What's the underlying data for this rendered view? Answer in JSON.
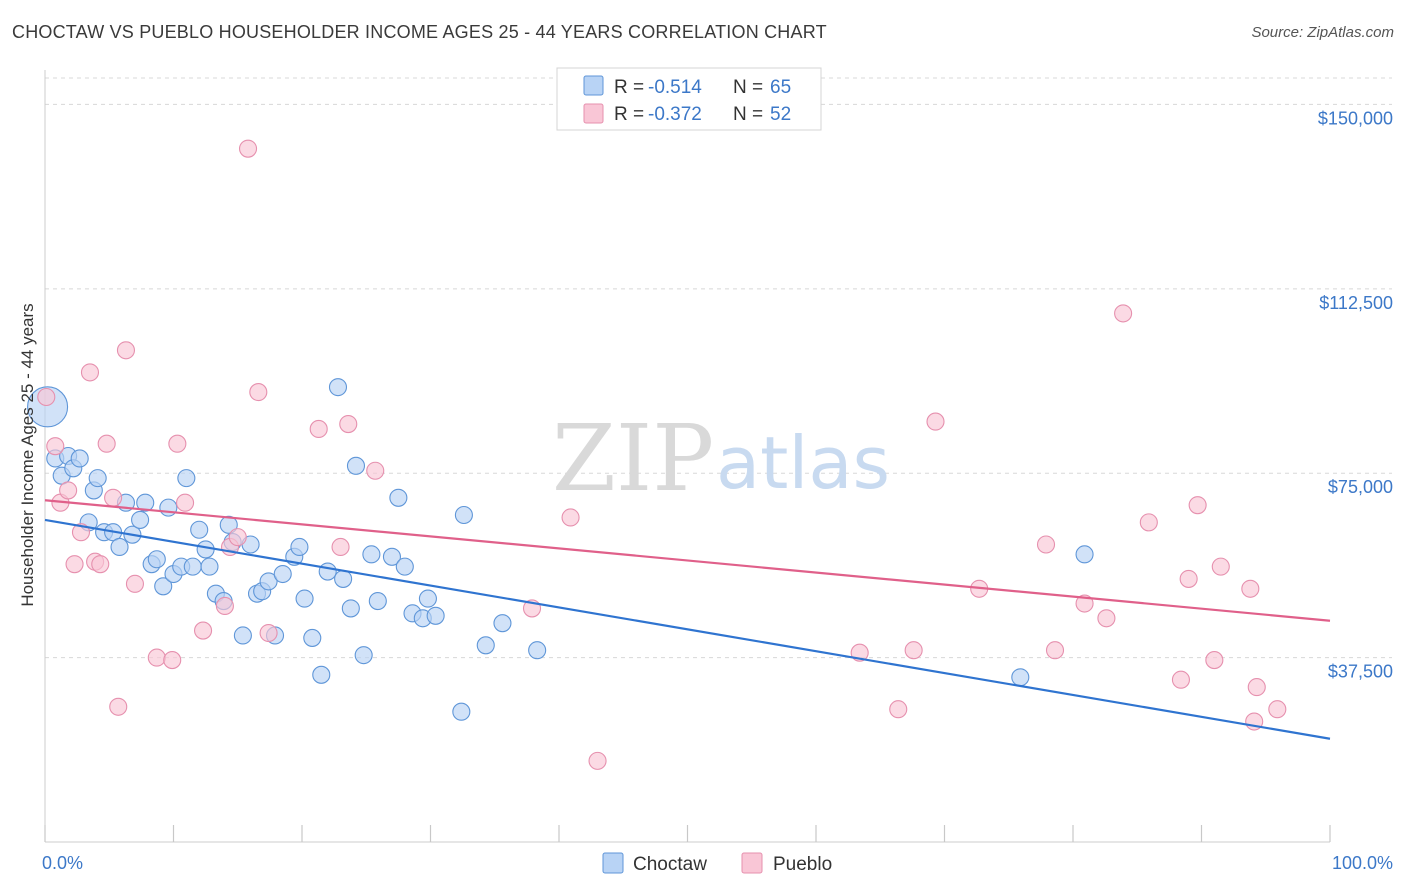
{
  "title": "CHOCTAW VS PUEBLO HOUSEHOLDER INCOME AGES 25 - 44 YEARS CORRELATION CHART",
  "source": "Source: ZipAtlas.com",
  "watermark": {
    "zip": "ZIP",
    "atlas": "atlas"
  },
  "colors": {
    "choctaw_fill": "#b8d3f5",
    "choctaw_stroke": "#5f96d8",
    "choctaw_line": "#2f74d0",
    "pueblo_fill": "#f9c6d6",
    "pueblo_stroke": "#e690ae",
    "pueblo_line": "#e0608a",
    "grid": "#d8d8d8",
    "axis_text": "#3c78c8"
  },
  "legend": {
    "r_label": "R =",
    "n_label": "N =",
    "choctaw": {
      "r": "-0.514",
      "n": "65"
    },
    "pueblo": {
      "r": "-0.372",
      "n": "52"
    }
  },
  "chart_data": {
    "type": "scatter",
    "ylabel": "Householder Income Ages 25 - 44 years",
    "xlim": [
      0,
      100
    ],
    "ylim": [
      0,
      157000
    ],
    "x_tick_labels": [
      "0.0%",
      "100.0%"
    ],
    "y_ticks": [
      {
        "value": 37500,
        "label": "$37,500"
      },
      {
        "value": 75000,
        "label": "$75,000"
      },
      {
        "value": 112500,
        "label": "$112,500"
      },
      {
        "value": 150000,
        "label": "$150,000"
      }
    ],
    "grid": true,
    "legend_position": "top-center",
    "series": [
      {
        "name": "Choctaw",
        "trend": {
          "x": [
            0,
            100
          ],
          "y": [
            65500,
            21000
          ]
        },
        "points": [
          {
            "x": 0.2,
            "y": 88500,
            "big": true
          },
          {
            "x": 0.8,
            "y": 78000
          },
          {
            "x": 1.3,
            "y": 74500
          },
          {
            "x": 1.8,
            "y": 78500
          },
          {
            "x": 2.2,
            "y": 76000
          },
          {
            "x": 2.7,
            "y": 78000
          },
          {
            "x": 3.4,
            "y": 65000
          },
          {
            "x": 3.8,
            "y": 71500
          },
          {
            "x": 4.1,
            "y": 74000
          },
          {
            "x": 4.6,
            "y": 63000
          },
          {
            "x": 5.3,
            "y": 63000
          },
          {
            "x": 5.8,
            "y": 60000
          },
          {
            "x": 6.3,
            "y": 69000
          },
          {
            "x": 6.8,
            "y": 62500
          },
          {
            "x": 7.4,
            "y": 65500
          },
          {
            "x": 7.8,
            "y": 69000
          },
          {
            "x": 8.3,
            "y": 56500
          },
          {
            "x": 8.7,
            "y": 57500
          },
          {
            "x": 9.2,
            "y": 52000
          },
          {
            "x": 9.6,
            "y": 68000
          },
          {
            "x": 10.0,
            "y": 54500
          },
          {
            "x": 10.6,
            "y": 56000
          },
          {
            "x": 11.0,
            "y": 74000
          },
          {
            "x": 11.5,
            "y": 56000
          },
          {
            "x": 12.0,
            "y": 63500
          },
          {
            "x": 12.5,
            "y": 59500
          },
          {
            "x": 12.8,
            "y": 56000
          },
          {
            "x": 13.3,
            "y": 50500
          },
          {
            "x": 13.9,
            "y": 49000
          },
          {
            "x": 14.3,
            "y": 64500
          },
          {
            "x": 14.6,
            "y": 61000
          },
          {
            "x": 15.4,
            "y": 42000
          },
          {
            "x": 16.0,
            "y": 60500
          },
          {
            "x": 16.5,
            "y": 50500
          },
          {
            "x": 16.9,
            "y": 51000
          },
          {
            "x": 17.4,
            "y": 53000
          },
          {
            "x": 17.9,
            "y": 42000
          },
          {
            "x": 18.5,
            "y": 54500
          },
          {
            "x": 19.4,
            "y": 58000
          },
          {
            "x": 19.8,
            "y": 60000
          },
          {
            "x": 20.2,
            "y": 49500
          },
          {
            "x": 20.8,
            "y": 41500
          },
          {
            "x": 21.5,
            "y": 34000
          },
          {
            "x": 22.0,
            "y": 55000
          },
          {
            "x": 22.8,
            "y": 92500
          },
          {
            "x": 23.2,
            "y": 53500
          },
          {
            "x": 23.8,
            "y": 47500
          },
          {
            "x": 24.2,
            "y": 76500
          },
          {
            "x": 24.8,
            "y": 38000
          },
          {
            "x": 25.4,
            "y": 58500
          },
          {
            "x": 25.9,
            "y": 49000
          },
          {
            "x": 27.0,
            "y": 58000
          },
          {
            "x": 27.5,
            "y": 70000
          },
          {
            "x": 28.0,
            "y": 56000
          },
          {
            "x": 28.6,
            "y": 46500
          },
          {
            "x": 29.4,
            "y": 45500
          },
          {
            "x": 29.8,
            "y": 49500
          },
          {
            "x": 30.4,
            "y": 46000
          },
          {
            "x": 32.4,
            "y": 26500
          },
          {
            "x": 32.6,
            "y": 66500
          },
          {
            "x": 34.3,
            "y": 40000
          },
          {
            "x": 35.6,
            "y": 44500
          },
          {
            "x": 38.3,
            "y": 39000
          },
          {
            "x": 75.9,
            "y": 33500
          },
          {
            "x": 80.9,
            "y": 58500
          }
        ]
      },
      {
        "name": "Pueblo",
        "trend": {
          "x": [
            0,
            100
          ],
          "y": [
            69500,
            45000
          ]
        },
        "points": [
          {
            "x": 0.1,
            "y": 90500
          },
          {
            "x": 0.8,
            "y": 80500
          },
          {
            "x": 1.2,
            "y": 69000
          },
          {
            "x": 1.8,
            "y": 71500
          },
          {
            "x": 2.3,
            "y": 56500
          },
          {
            "x": 2.8,
            "y": 63000
          },
          {
            "x": 3.5,
            "y": 95500
          },
          {
            "x": 3.9,
            "y": 57000
          },
          {
            "x": 4.3,
            "y": 56500
          },
          {
            "x": 4.8,
            "y": 81000
          },
          {
            "x": 5.3,
            "y": 70000
          },
          {
            "x": 5.7,
            "y": 27500
          },
          {
            "x": 6.3,
            "y": 100000
          },
          {
            "x": 7.0,
            "y": 52500
          },
          {
            "x": 8.7,
            "y": 37500
          },
          {
            "x": 9.9,
            "y": 37000
          },
          {
            "x": 10.3,
            "y": 81000
          },
          {
            "x": 10.9,
            "y": 69000
          },
          {
            "x": 12.3,
            "y": 43000
          },
          {
            "x": 14.0,
            "y": 48000
          },
          {
            "x": 14.4,
            "y": 60000
          },
          {
            "x": 15.0,
            "y": 62000
          },
          {
            "x": 15.8,
            "y": 141000
          },
          {
            "x": 16.6,
            "y": 91500
          },
          {
            "x": 17.4,
            "y": 42500
          },
          {
            "x": 21.3,
            "y": 84000
          },
          {
            "x": 23.0,
            "y": 60000
          },
          {
            "x": 23.6,
            "y": 85000
          },
          {
            "x": 25.7,
            "y": 75500
          },
          {
            "x": 37.9,
            "y": 47500
          },
          {
            "x": 40.9,
            "y": 66000
          },
          {
            "x": 43.0,
            "y": 16500
          },
          {
            "x": 63.4,
            "y": 38500
          },
          {
            "x": 66.4,
            "y": 27000
          },
          {
            "x": 67.6,
            "y": 39000
          },
          {
            "x": 69.3,
            "y": 85500
          },
          {
            "x": 72.7,
            "y": 51500
          },
          {
            "x": 77.9,
            "y": 60500
          },
          {
            "x": 78.6,
            "y": 39000
          },
          {
            "x": 80.9,
            "y": 48500
          },
          {
            "x": 82.6,
            "y": 45500
          },
          {
            "x": 83.9,
            "y": 107500
          },
          {
            "x": 85.9,
            "y": 65000
          },
          {
            "x": 88.4,
            "y": 33000
          },
          {
            "x": 89.0,
            "y": 53500
          },
          {
            "x": 89.7,
            "y": 68500
          },
          {
            "x": 91.0,
            "y": 37000
          },
          {
            "x": 91.5,
            "y": 56000
          },
          {
            "x": 93.8,
            "y": 51500
          },
          {
            "x": 94.1,
            "y": 24500
          },
          {
            "x": 94.3,
            "y": 31500
          },
          {
            "x": 95.9,
            "y": 27000
          }
        ]
      }
    ]
  }
}
